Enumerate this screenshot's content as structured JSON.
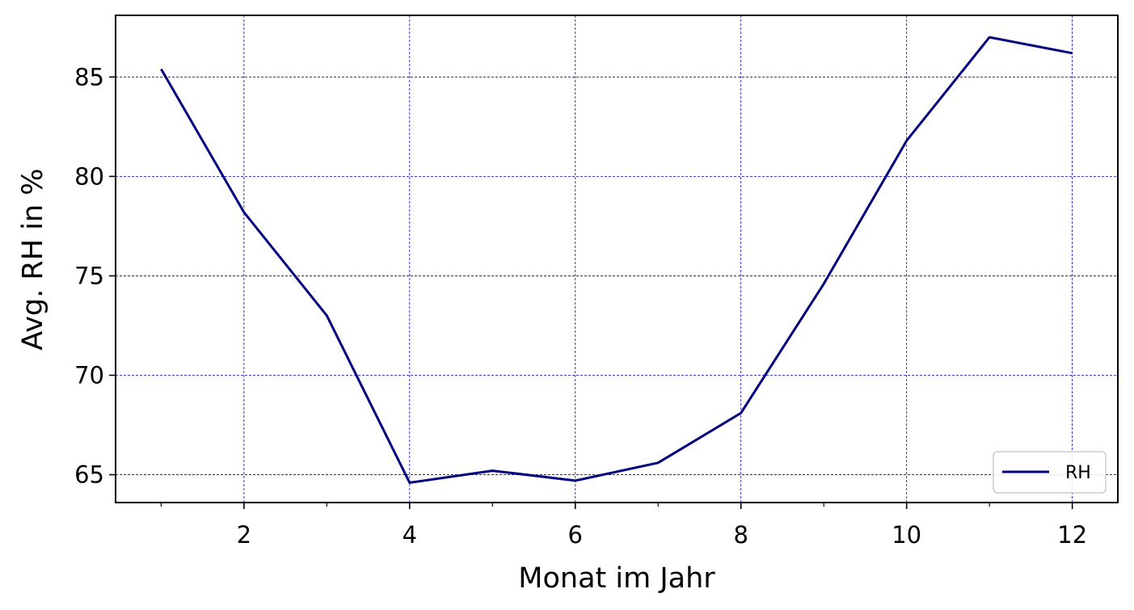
{
  "chart_data": {
    "type": "line",
    "xlabel": "Monat im Jahr",
    "ylabel": "Avg. RH in %",
    "xlim": [
      0.45,
      12.55
    ],
    "ylim": [
      63.6,
      88.1
    ],
    "x_ticks": [
      2,
      4,
      6,
      8,
      10,
      12
    ],
    "x_minor_ticks": [
      1,
      3,
      5,
      7,
      9,
      11
    ],
    "y_ticks": [
      65,
      70,
      75,
      80,
      85
    ],
    "grid": true,
    "legend_position": "bottom-right",
    "colors": {
      "line": "#000080",
      "grid": "#0000cc"
    },
    "series": [
      {
        "name": "RH",
        "x": [
          1,
          2,
          3,
          4,
          5,
          6,
          7,
          8,
          9,
          10,
          11,
          12
        ],
        "y": [
          85.4,
          78.2,
          73.0,
          64.6,
          65.2,
          64.7,
          65.6,
          68.1,
          74.6,
          81.8,
          87.0,
          86.2
        ]
      }
    ]
  }
}
